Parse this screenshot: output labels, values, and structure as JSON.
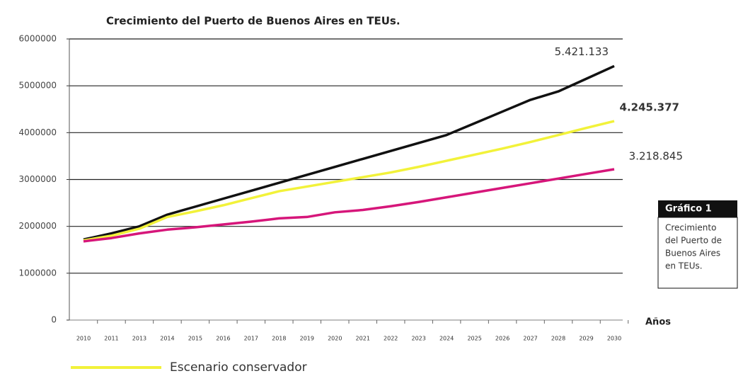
{
  "chart_data": {
    "type": "line",
    "title": "Crecimiento del Puerto de Buenos Aires en TEUs.",
    "x_label": "Años",
    "categories": [
      "2010",
      "2011",
      "2013",
      "2014",
      "2015",
      "2016",
      "2017",
      "2018",
      "2019",
      "2020",
      "2021",
      "2022",
      "2023",
      "2024",
      "2025",
      "2026",
      "2027",
      "2028",
      "2029",
      "2030"
    ],
    "series": [
      {
        "color": "#111111",
        "values": [
          1720000,
          1850000,
          2000000,
          2250000,
          2420000,
          2590000,
          2760000,
          2930000,
          3100000,
          3270000,
          3440000,
          3610000,
          3780000,
          3950000,
          4200000,
          4450000,
          4700000,
          4880000,
          5150000,
          5421133
        ],
        "value_labels": [
          null,
          null,
          null,
          null,
          null,
          null,
          null,
          null,
          null,
          null,
          null,
          null,
          null,
          null,
          null,
          null,
          null,
          null,
          null,
          "5.421.133"
        ]
      },
      {
        "name": "Escenario conservador",
        "color": "#f2f23a",
        "values": [
          1700000,
          1800000,
          1950000,
          2200000,
          2320000,
          2450000,
          2600000,
          2750000,
          2850000,
          2950000,
          3050000,
          3150000,
          3270000,
          3400000,
          3530000,
          3660000,
          3800000,
          3950000,
          4100000,
          4245377
        ],
        "value_labels": [
          null,
          null,
          null,
          null,
          null,
          null,
          null,
          null,
          null,
          null,
          null,
          null,
          null,
          null,
          null,
          null,
          null,
          null,
          null,
          "4.245.377"
        ]
      },
      {
        "color": "#d6167a",
        "values": [
          1680000,
          1750000,
          1850000,
          1930000,
          1980000,
          2040000,
          2100000,
          2170000,
          2200000,
          2300000,
          2350000,
          2430000,
          2520000,
          2620000,
          2720000,
          2820000,
          2920000,
          3020000,
          3120000,
          3218845
        ],
        "value_labels": [
          null,
          null,
          null,
          null,
          null,
          null,
          null,
          null,
          null,
          null,
          null,
          null,
          null,
          null,
          null,
          null,
          null,
          null,
          null,
          "3.218.845"
        ]
      }
    ],
    "ylim": [
      0,
      6000000
    ],
    "yticks": [
      0,
      1000000,
      2000000,
      3000000,
      4000000,
      5000000,
      6000000
    ],
    "grid": true,
    "side_box": {
      "title": "Gráfico 1",
      "lines": [
        "Crecimiento",
        "del Puerto de",
        "Buenos Aires",
        "en TEUs."
      ]
    }
  }
}
